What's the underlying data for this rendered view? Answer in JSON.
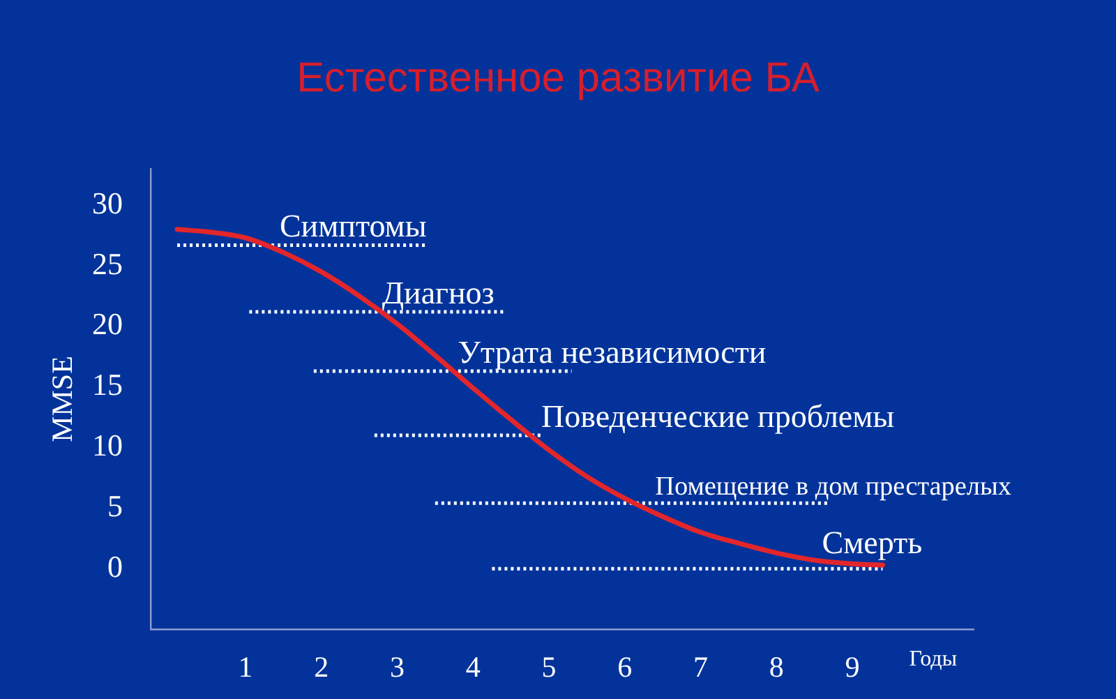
{
  "chart_data": {
    "type": "line",
    "title": "Естественное развитие БА",
    "xlabel": "Годы",
    "ylabel": "MMSE",
    "xlim": [
      -0.25,
      10.6
    ],
    "xticks": [
      1,
      2,
      3,
      4,
      5,
      6,
      7,
      8,
      9
    ],
    "ylim": [
      -5,
      33
    ],
    "yticks": [
      0,
      5,
      10,
      15,
      20,
      25,
      30
    ],
    "marker": "none",
    "series": [
      {
        "color": "#e3262b",
        "line_style": "solid",
        "x": [
          0.1,
          0.5,
          1.0,
          1.5,
          2.0,
          2.5,
          3.0,
          3.5,
          4.0,
          4.5,
          5.0,
          5.5,
          6.0,
          6.5,
          7.0,
          7.5,
          8.0,
          8.5,
          9.0,
          9.4
        ],
        "values": [
          28.0,
          27.8,
          27.3,
          26.1,
          24.5,
          22.5,
          20.2,
          17.6,
          14.9,
          12.3,
          9.8,
          7.6,
          5.8,
          4.3,
          3.0,
          2.1,
          1.3,
          0.7,
          0.4,
          0.3
        ]
      },
      {
        "color": "#ffffff",
        "line_style": "dotted",
        "x": [
          0.1,
          3.4
        ],
        "values": [
          26.7,
          26.7
        ]
      },
      {
        "color": "#ffffff",
        "line_style": "dotted",
        "x": [
          1.05,
          4.4
        ],
        "values": [
          21.2,
          21.2
        ]
      },
      {
        "color": "#ffffff",
        "line_style": "dotted",
        "x": [
          1.9,
          5.3
        ],
        "values": [
          16.3,
          16.3
        ]
      },
      {
        "color": "#ffffff",
        "line_style": "dotted",
        "x": [
          2.7,
          4.9
        ],
        "values": [
          11.0,
          11.0
        ]
      },
      {
        "color": "#ffffff",
        "line_style": "dotted",
        "x": [
          3.5,
          8.7
        ],
        "values": [
          5.4,
          5.4
        ]
      },
      {
        "color": "#ffffff",
        "line_style": "dotted",
        "x": [
          4.25,
          9.4
        ],
        "values": [
          0.0,
          0.0
        ]
      }
    ],
    "annotations": [
      {
        "text": "Симптомы",
        "x": 1.45,
        "y": 26.7
      },
      {
        "text": "Диагноз",
        "x": 2.8,
        "y": 21.2
      },
      {
        "text": "Утрата независимости",
        "x": 3.8,
        "y": 16.3
      },
      {
        "text": "Поведенческие проблемы",
        "x": 4.9,
        "y": 11.0
      },
      {
        "text": "Помещение в дом престарелых",
        "x": 6.4,
        "y": 5.4
      },
      {
        "text": "Смерть",
        "x": 8.6,
        "y": 0.6
      }
    ]
  }
}
